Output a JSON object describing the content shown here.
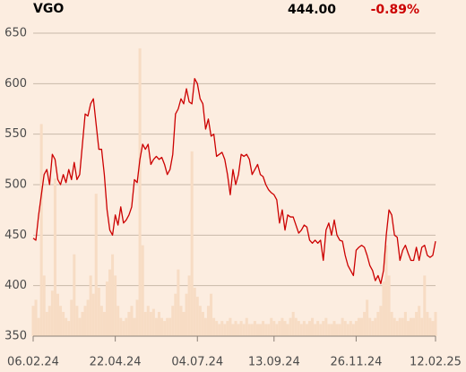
{
  "chart_data": {
    "type": "line",
    "title": "VGO",
    "last_price": "444.00",
    "change": "-0.89%",
    "color": "#cc0000",
    "values": [
      447,
      445,
      470,
      490,
      510,
      515,
      500,
      530,
      525,
      505,
      500,
      510,
      502,
      515,
      505,
      522,
      505,
      510,
      540,
      570,
      568,
      580,
      585,
      560,
      535,
      535,
      510,
      475,
      455,
      450,
      470,
      460,
      478,
      462,
      465,
      470,
      478,
      505,
      502,
      525,
      540,
      535,
      540,
      520,
      525,
      528,
      525,
      527,
      520,
      510,
      515,
      530,
      570,
      575,
      585,
      580,
      595,
      582,
      580,
      605,
      600,
      585,
      580,
      555,
      565,
      548,
      550,
      528,
      530,
      532,
      525,
      510,
      490,
      515,
      500,
      510,
      530,
      528,
      530,
      525,
      510,
      515,
      520,
      510,
      508,
      500,
      495,
      492,
      490,
      485,
      462,
      475,
      455,
      470,
      468,
      468,
      460,
      452,
      455,
      460,
      458,
      445,
      442,
      445,
      442,
      445,
      425,
      455,
      462,
      450,
      465,
      450,
      445,
      444,
      430,
      420,
      415,
      410,
      435,
      438,
      440,
      438,
      430,
      420,
      415,
      405,
      410,
      402,
      415,
      450,
      475,
      470,
      450,
      448,
      425,
      435,
      440,
      432,
      425,
      425,
      438,
      425,
      438,
      440,
      430,
      428,
      430,
      444
    ],
    "categories": [
      "06.02.24",
      null,
      null,
      null,
      null,
      null,
      null,
      null,
      null,
      null,
      null,
      null,
      null,
      null,
      null,
      null,
      null,
      null,
      null,
      null,
      null,
      null,
      null,
      null,
      null,
      null,
      null,
      null,
      null,
      null,
      "22.04.24",
      null,
      null,
      null,
      null,
      null,
      null,
      null,
      null,
      null,
      null,
      null,
      null,
      null,
      null,
      null,
      null,
      null,
      null,
      null,
      null,
      null,
      null,
      null,
      null,
      null,
      null,
      null,
      null,
      null,
      "04.07.24",
      null,
      null,
      null,
      null,
      null,
      null,
      null,
      null,
      null,
      null,
      null,
      null,
      null,
      null,
      null,
      null,
      null,
      null,
      null,
      null,
      null,
      null,
      null,
      null,
      null,
      null,
      null,
      "13.09.24",
      null,
      null,
      null,
      null,
      null,
      null,
      null,
      null,
      null,
      null,
      null,
      null,
      null,
      null,
      null,
      null,
      null,
      null,
      null,
      null,
      null,
      null,
      null,
      null,
      null,
      null,
      null,
      null,
      null,
      "26.11.24",
      null,
      null,
      null,
      null,
      null,
      null,
      null,
      null,
      null,
      null,
      null,
      null,
      null,
      null,
      null,
      null,
      null,
      null,
      null,
      null,
      null,
      null,
      null,
      null,
      null,
      null,
      null,
      null,
      "12.02.25"
    ],
    "volume": {
      "color": "#f7dcc4",
      "axis": "y2",
      "values": [
        10,
        12,
        6,
        70,
        20,
        8,
        10,
        15,
        52,
        14,
        10,
        8,
        6,
        5,
        12,
        27,
        10,
        6,
        8,
        10,
        12,
        20,
        14,
        47,
        16,
        10,
        8,
        18,
        22,
        27,
        20,
        10,
        6,
        5,
        6,
        8,
        10,
        6,
        12,
        95,
        30,
        8,
        10,
        8,
        9,
        6,
        8,
        6,
        5,
        6,
        6,
        10,
        14,
        22,
        10,
        8,
        14,
        20,
        61,
        16,
        13,
        10,
        8,
        6,
        10,
        14,
        6,
        5,
        4,
        5,
        4,
        5,
        6,
        4,
        5,
        4,
        5,
        4,
        6,
        4,
        4,
        5,
        4,
        4,
        5,
        4,
        4,
        6,
        5,
        4,
        5,
        6,
        5,
        4,
        6,
        8,
        6,
        5,
        4,
        5,
        4,
        5,
        6,
        4,
        5,
        4,
        5,
        6,
        4,
        4,
        5,
        4,
        4,
        6,
        5,
        4,
        5,
        4,
        5,
        6,
        6,
        8,
        12,
        6,
        5,
        6,
        8,
        10,
        18,
        30,
        20,
        8,
        6,
        5,
        6,
        6,
        8,
        5,
        6,
        6,
        8,
        10,
        6,
        20,
        8,
        6,
        5,
        8
      ]
    },
    "ylim": [
      350,
      650
    ],
    "yticks": [
      350,
      400,
      450,
      500,
      550,
      600,
      650
    ],
    "y2lim": [
      0,
      100
    ],
    "grid": true
  }
}
